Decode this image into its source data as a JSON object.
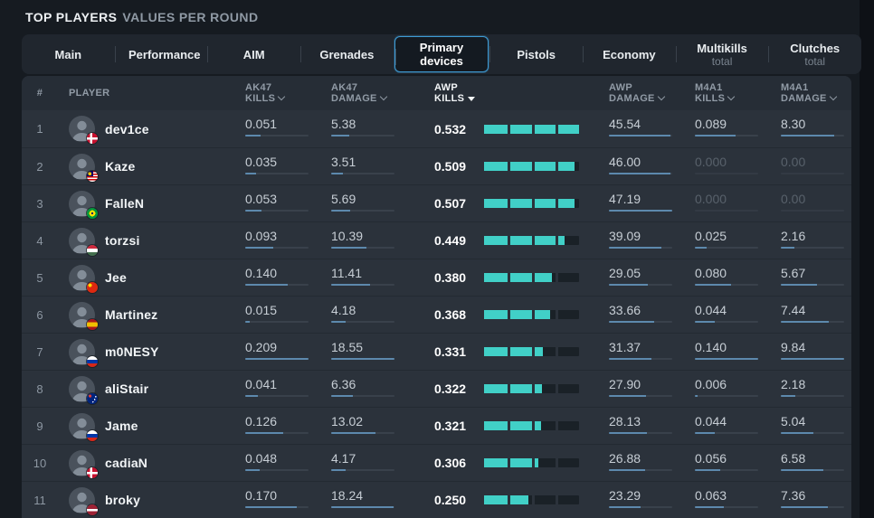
{
  "title": {
    "main": "TOP PLAYERS",
    "sub": "VALUES PER ROUND"
  },
  "tabs": [
    {
      "label": "Main",
      "sublabel": "",
      "selected": false
    },
    {
      "label": "Performance",
      "sublabel": "",
      "selected": false
    },
    {
      "label": "AIM",
      "sublabel": "",
      "selected": false
    },
    {
      "label": "Grenades",
      "sublabel": "",
      "selected": false
    },
    {
      "label": "Primary devices",
      "sublabel": "",
      "selected": true
    },
    {
      "label": "Pistols",
      "sublabel": "",
      "selected": false
    },
    {
      "label": "Economy",
      "sublabel": "",
      "selected": false
    },
    {
      "label": "Multikills",
      "sublabel": "total",
      "selected": false
    },
    {
      "label": "Clutches",
      "sublabel": "total",
      "selected": false
    }
  ],
  "table": {
    "columns": [
      {
        "key": "rank",
        "label": "#"
      },
      {
        "key": "player",
        "label": "PLAYER"
      },
      {
        "key": "ak47_kills",
        "line1": "AK47",
        "line2": "KILLS",
        "sortable": true,
        "active": false,
        "pad": false
      },
      {
        "key": "ak47_damage",
        "line1": "AK47",
        "line2": "DAMAGE",
        "sortable": true,
        "active": false,
        "pad": false
      },
      {
        "key": "awp_kills",
        "line1": "AWP",
        "line2": "KILLS",
        "sortable": true,
        "active": true,
        "pad": false
      },
      {
        "key": "awp_damage",
        "line1": "AWP",
        "line2": "DAMAGE",
        "sortable": true,
        "active": false,
        "pad": true
      },
      {
        "key": "m4a1_kills",
        "line1": "M4A1",
        "line2": "KILLS",
        "sortable": true,
        "active": false,
        "pad": true
      },
      {
        "key": "m4a1_damage",
        "line1": "M4A1",
        "line2": "DAMAGE",
        "sortable": true,
        "active": false,
        "pad": true
      }
    ],
    "stat_order": [
      "ak47_kills",
      "ak47_damage",
      "awp_kills",
      "awp_damage",
      "m4a1_kills",
      "m4a1_damage"
    ],
    "col_max": {
      "ak47_kills": 0.209,
      "ak47_damage": 18.55,
      "awp_kills": 0.532,
      "awp_damage": 47.19,
      "m4a1_kills": 0.14,
      "m4a1_damage": 9.84
    },
    "colors": {
      "accent_teal": "#41d0c7",
      "accent_blue": "#5d89ad",
      "tab_selected_border": "#3e9bd5"
    },
    "rows": [
      {
        "rank": "1",
        "player": "dev1ce",
        "flag": "denmark",
        "ak47_kills": "0.051",
        "ak47_damage": "5.38",
        "awp_kills": "0.532",
        "awp_damage": "45.54",
        "m4a1_kills": "0.089",
        "m4a1_damage": "8.30"
      },
      {
        "rank": "2",
        "player": "Kaze",
        "flag": "malaysia",
        "ak47_kills": "0.035",
        "ak47_damage": "3.51",
        "awp_kills": "0.509",
        "awp_damage": "46.00",
        "m4a1_kills": "0.000",
        "m4a1_damage": "0.00"
      },
      {
        "rank": "3",
        "player": "FalleN",
        "flag": "brazil",
        "ak47_kills": "0.053",
        "ak47_damage": "5.69",
        "awp_kills": "0.507",
        "awp_damage": "47.19",
        "m4a1_kills": "0.000",
        "m4a1_damage": "0.00"
      },
      {
        "rank": "4",
        "player": "torzsi",
        "flag": "hungary",
        "ak47_kills": "0.093",
        "ak47_damage": "10.39",
        "awp_kills": "0.449",
        "awp_damage": "39.09",
        "m4a1_kills": "0.025",
        "m4a1_damage": "2.16"
      },
      {
        "rank": "5",
        "player": "Jee",
        "flag": "china",
        "ak47_kills": "0.140",
        "ak47_damage": "11.41",
        "awp_kills": "0.380",
        "awp_damage": "29.05",
        "m4a1_kills": "0.080",
        "m4a1_damage": "5.67"
      },
      {
        "rank": "6",
        "player": "Martinez",
        "flag": "spain",
        "ak47_kills": "0.015",
        "ak47_damage": "4.18",
        "awp_kills": "0.368",
        "awp_damage": "33.66",
        "m4a1_kills": "0.044",
        "m4a1_damage": "7.44"
      },
      {
        "rank": "7",
        "player": "m0NESY",
        "flag": "russia",
        "ak47_kills": "0.209",
        "ak47_damage": "18.55",
        "awp_kills": "0.331",
        "awp_damage": "31.37",
        "m4a1_kills": "0.140",
        "m4a1_damage": "9.84"
      },
      {
        "rank": "8",
        "player": "aliStair",
        "flag": "australia",
        "ak47_kills": "0.041",
        "ak47_damage": "6.36",
        "awp_kills": "0.322",
        "awp_damage": "27.90",
        "m4a1_kills": "0.006",
        "m4a1_damage": "2.18"
      },
      {
        "rank": "9",
        "player": "Jame",
        "flag": "russia",
        "ak47_kills": "0.126",
        "ak47_damage": "13.02",
        "awp_kills": "0.321",
        "awp_damage": "28.13",
        "m4a1_kills": "0.044",
        "m4a1_damage": "5.04"
      },
      {
        "rank": "10",
        "player": "cadiaN",
        "flag": "denmark",
        "ak47_kills": "0.048",
        "ak47_damage": "4.17",
        "awp_kills": "0.306",
        "awp_damage": "26.88",
        "m4a1_kills": "0.056",
        "m4a1_damage": "6.58"
      },
      {
        "rank": "11",
        "player": "broky",
        "flag": "latvia",
        "ak47_kills": "0.170",
        "ak47_damage": "18.24",
        "awp_kills": "0.250",
        "awp_damage": "23.29",
        "m4a1_kills": "0.063",
        "m4a1_damage": "7.36"
      }
    ]
  }
}
